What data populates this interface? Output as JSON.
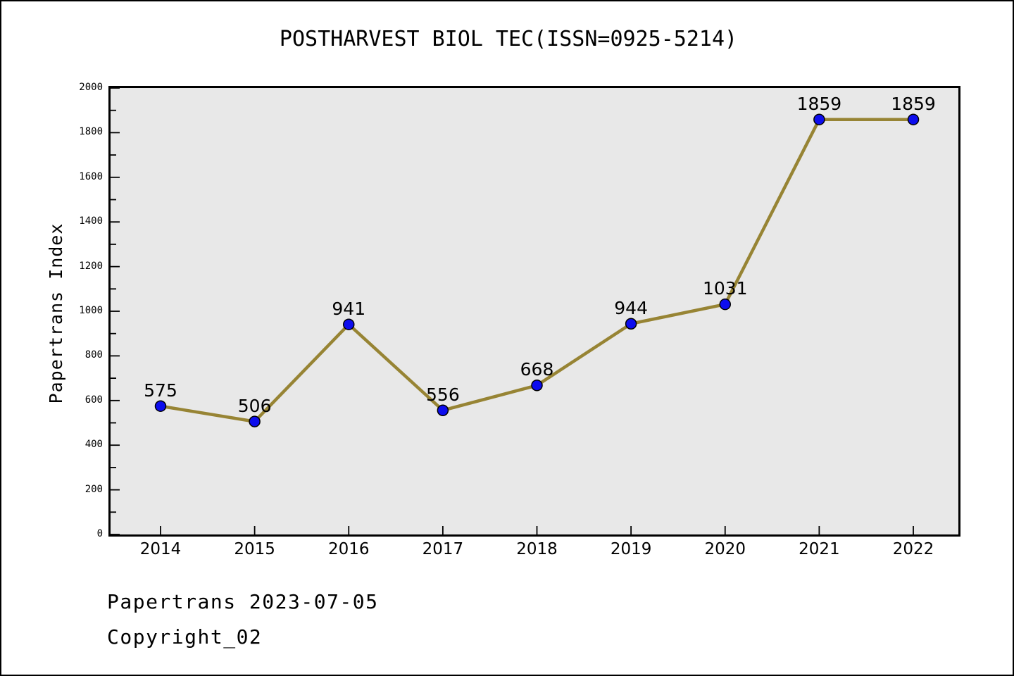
{
  "title": "POSTHARVEST BIOL TEC(ISSN=0925-5214)",
  "footer": {
    "line1": "Papertrans 2023-07-05",
    "line2": "Copyright_02"
  },
  "chart_data": {
    "type": "line",
    "title": "POSTHARVEST BIOL TEC(ISSN=0925-5214)",
    "xlabel": "",
    "ylabel": "Papertrans Index",
    "categories": [
      "2014",
      "2015",
      "2016",
      "2017",
      "2018",
      "2019",
      "2020",
      "2021",
      "2022"
    ],
    "values": [
      575,
      506,
      941,
      556,
      668,
      944,
      1031,
      1859,
      1859
    ],
    "point_labels": [
      "575",
      "506",
      "941",
      "556",
      "668",
      "944",
      "1031",
      "1859",
      "1859"
    ],
    "ylim": [
      0,
      2000
    ],
    "y_major_step": 200,
    "y_minor_step": 100,
    "y_tick_labels": [
      "0",
      "200",
      "400",
      "600",
      "800",
      "1000",
      "1200",
      "1400",
      "1600",
      "1800",
      "2000"
    ],
    "grid": false,
    "legend": "none",
    "line_color": "#978434",
    "marker_color": "#0d0dee",
    "marker_edge_color": "#000000",
    "plot_bg_color": "#e8e8e8",
    "axis_color": "#000000"
  }
}
